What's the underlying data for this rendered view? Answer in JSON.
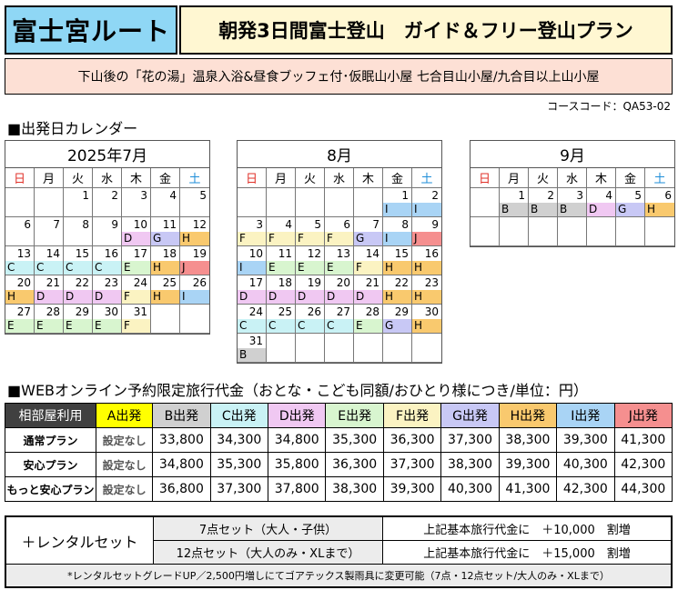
{
  "header": {
    "route": "富士宮ルート",
    "title": "朝発3日間富士登山　ガイド＆フリー登山プラン",
    "subtitle": "下山後の「花の湯」温泉入浴&昼食ブッフェ付･仮眠山小屋 七合目山小屋/九合目以上山小屋",
    "course_code": "コースコード：QA53-02"
  },
  "calendar_section": {
    "title": "■出発日カレンダー"
  },
  "colors": {
    "A": "#ffff00",
    "B": "#d0d0d0",
    "C": "#c9f2f5",
    "D": "#f0c8f2",
    "E": "#d8f5cf",
    "F": "#fbf3c2",
    "G": "#c8c8f5",
    "H": "#f9c96e",
    "I": "#a9d4f5",
    "J": "#f58f8f"
  },
  "weekdays": [
    "日",
    "月",
    "火",
    "水",
    "木",
    "金",
    "土"
  ],
  "calendars": [
    {
      "title": "2025年7月",
      "start_weekday": 2,
      "days": 31,
      "rows": 5,
      "codes": {
        "10": "D",
        "11": "G",
        "12": "H",
        "13": "C",
        "14": "C",
        "15": "C",
        "16": "C",
        "17": "E",
        "18": "H",
        "19": "J",
        "20": "H",
        "21": "D",
        "22": "D",
        "23": "D",
        "24": "F",
        "25": "H",
        "26": "I",
        "27": "E",
        "28": "E",
        "29": "E",
        "30": "E",
        "31": "F"
      }
    },
    {
      "title": "8月",
      "start_weekday": 5,
      "days": 31,
      "rows": 6,
      "codes": {
        "1": "I",
        "2": "I",
        "3": "F",
        "4": "F",
        "5": "F",
        "6": "F",
        "7": "G",
        "8": "I",
        "9": "J",
        "10": "I",
        "11": "E",
        "12": "E",
        "13": "E",
        "14": "F",
        "15": "H",
        "16": "H",
        "17": "D",
        "18": "D",
        "19": "D",
        "20": "D",
        "21": "D",
        "22": "H",
        "23": "H",
        "24": "C",
        "25": "C",
        "26": "C",
        "27": "C",
        "28": "E",
        "29": "G",
        "30": "H",
        "31": "B"
      }
    },
    {
      "title": "9月",
      "start_weekday": 1,
      "days": 6,
      "rows": 2,
      "codes": {
        "1": "B",
        "2": "B",
        "3": "B",
        "4": "D",
        "5": "G",
        "6": "H"
      }
    }
  ],
  "price_section": {
    "title": "■WEBオンライン予約限定旅行代金（おとな・こども同額/おひとり様につき/単位：円）"
  },
  "price_table": {
    "corner": "相部屋利用",
    "columns": [
      "A出発",
      "B出発",
      "C出発",
      "D出発",
      "E出発",
      "F出発",
      "G出発",
      "H出発",
      "I出発",
      "J出発"
    ],
    "column_keys": [
      "A",
      "B",
      "C",
      "D",
      "E",
      "F",
      "G",
      "H",
      "I",
      "J"
    ],
    "rows": [
      {
        "label": "通常プラン",
        "values": [
          "設定なし",
          "33,800",
          "34,300",
          "34,800",
          "35,300",
          "36,300",
          "37,300",
          "38,300",
          "39,300",
          "41,300"
        ]
      },
      {
        "label": "安心プラン",
        "values": [
          "設定なし",
          "34,800",
          "35,300",
          "35,800",
          "36,300",
          "37,300",
          "38,300",
          "39,300",
          "40,300",
          "42,300"
        ]
      },
      {
        "label": "もっと安心プラン",
        "values": [
          "設定なし",
          "36,800",
          "37,300",
          "37,800",
          "38,300",
          "39,300",
          "40,300",
          "41,300",
          "42,300",
          "44,300"
        ]
      }
    ]
  },
  "rental": {
    "label": "＋レンタルセット",
    "items": [
      {
        "name": "7点セット（大人・子供）",
        "desc": "上記基本旅行代金に　＋10,000　割増"
      },
      {
        "name": "12点セット（大人のみ・XLまで）",
        "desc": "上記基本旅行代金に　＋15,000　割増"
      }
    ],
    "note": "*レンタルセットグレードUP／2,500円増しにてゴアテックス製雨具に変更可能（7点・12点セット/大人のみ・XLまで）"
  }
}
